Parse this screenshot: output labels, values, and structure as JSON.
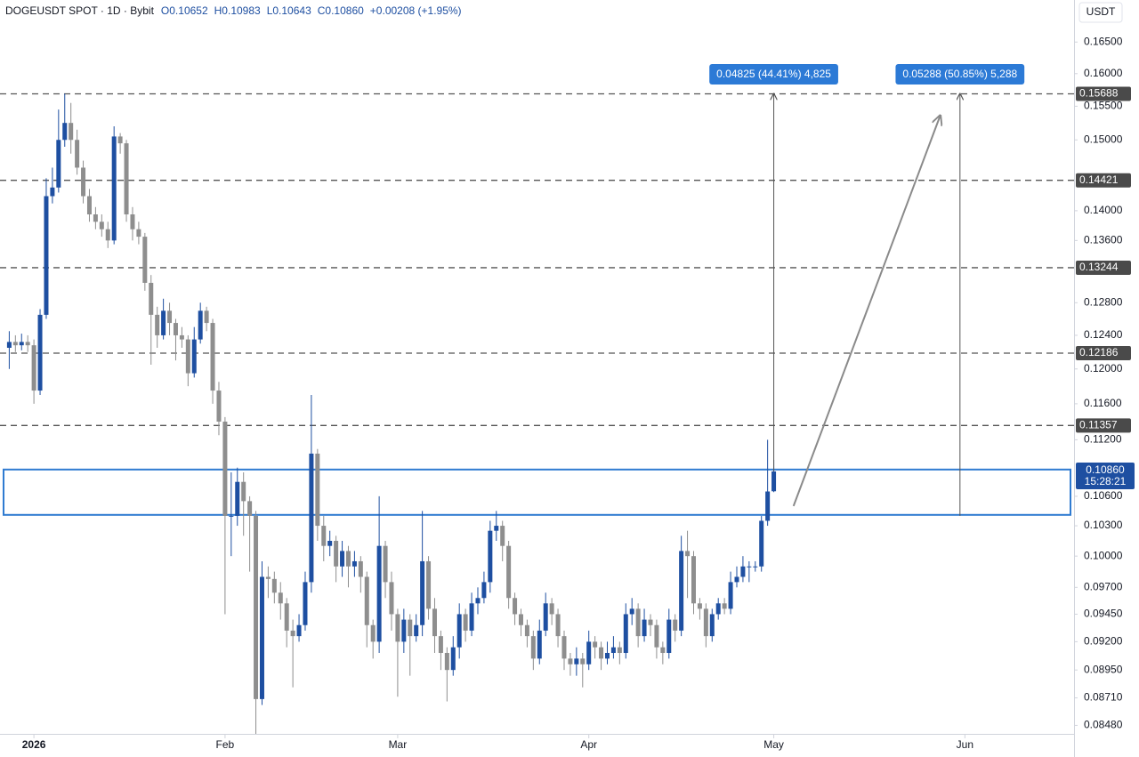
{
  "chart_data": {
    "type": "candlestick",
    "symbol": "DOGEUSDT SPOT · 1D · Bybit",
    "ohlc_labels": [
      "O0.10652",
      "H0.10983",
      "L0.10643",
      "C0.10860"
    ],
    "change": "+0.00208 (+1.95%)",
    "currency": "USDT",
    "log_scale": true,
    "grid": false,
    "up_color": "#1e4fa1",
    "down_color": "#8e8e8e",
    "open": [
      0.1225,
      0.1232,
      0.1228,
      0.1232,
      0.1228,
      0.1175,
      0.1265,
      0.142,
      0.1432,
      0.15,
      0.1525,
      0.15,
      0.146,
      0.142,
      0.1395,
      0.1385,
      0.1375,
      0.136,
      0.1505,
      0.1495,
      0.1395,
      0.1375,
      0.1365,
      0.1305,
      0.1265,
      0.124,
      0.127,
      0.1255,
      0.124,
      0.1235,
      0.1195,
      0.1235,
      0.127,
      0.1255,
      0.1175,
      0.114,
      0.104,
      0.104,
      0.1075,
      0.1055,
      0.104,
      0.087,
      0.098,
      0.0978,
      0.0965,
      0.0955,
      0.093,
      0.0925,
      0.0935,
      0.0975,
      0.1105,
      0.103,
      0.101,
      0.1015,
      0.099,
      0.1005,
      0.099,
      0.0995,
      0.098,
      0.0935,
      0.092,
      0.101,
      0.0975,
      0.0945,
      0.092,
      0.094,
      0.0925,
      0.0935,
      0.0995,
      0.095,
      0.0925,
      0.091,
      0.0895,
      0.0915,
      0.0945,
      0.093,
      0.0955,
      0.096,
      0.0975,
      0.1025,
      0.103,
      0.101,
      0.096,
      0.0945,
      0.0935,
      0.0925,
      0.0905,
      0.093,
      0.0955,
      0.0945,
      0.0925,
      0.0905,
      0.09,
      0.0905,
      0.09,
      0.092,
      0.0915,
      0.0905,
      0.091,
      0.0915,
      0.091,
      0.0945,
      0.095,
      0.0925,
      0.094,
      0.0935,
      0.0915,
      0.091,
      0.094,
      0.093,
      0.1005,
      0.1,
      0.0955,
      0.095,
      0.0925,
      0.0945,
      0.0955,
      0.095,
      0.0975,
      0.098,
      0.099,
      0.099,
      0.099,
      0.1035,
      0.10652
    ],
    "high": [
      0.1245,
      0.124,
      0.1242,
      0.124,
      0.1235,
      0.1272,
      0.1445,
      0.146,
      0.1545,
      0.1569,
      0.1555,
      0.1515,
      0.147,
      0.143,
      0.1405,
      0.1395,
      0.1385,
      0.152,
      0.151,
      0.15,
      0.1405,
      0.1385,
      0.137,
      0.1315,
      0.1275,
      0.1285,
      0.128,
      0.126,
      0.125,
      0.124,
      0.125,
      0.128,
      0.1275,
      0.126,
      0.1185,
      0.1145,
      0.1085,
      0.109,
      0.1085,
      0.106,
      0.1045,
      0.0995,
      0.099,
      0.0985,
      0.0975,
      0.096,
      0.094,
      0.0945,
      0.0985,
      0.117,
      0.111,
      0.104,
      0.1025,
      0.102,
      0.1015,
      0.101,
      0.1005,
      0.1,
      0.0985,
      0.094,
      0.106,
      0.1015,
      0.0985,
      0.095,
      0.095,
      0.0945,
      0.0945,
      0.1045,
      0.1,
      0.096,
      0.093,
      0.0915,
      0.0925,
      0.0955,
      0.095,
      0.0965,
      0.097,
      0.0985,
      0.1035,
      0.1045,
      0.1035,
      0.1015,
      0.0965,
      0.095,
      0.094,
      0.093,
      0.094,
      0.0965,
      0.096,
      0.095,
      0.093,
      0.091,
      0.0915,
      0.091,
      0.093,
      0.0925,
      0.092,
      0.092,
      0.0925,
      0.092,
      0.0955,
      0.096,
      0.0955,
      0.095,
      0.0945,
      0.094,
      0.092,
      0.095,
      0.0945,
      0.102,
      0.1025,
      0.1005,
      0.096,
      0.0955,
      0.095,
      0.096,
      0.096,
      0.0985,
      0.099,
      0.1,
      0.0995,
      0.0995,
      0.104,
      0.112,
      0.10983
    ],
    "low": [
      0.12,
      0.122,
      0.1222,
      0.122,
      0.116,
      0.117,
      0.126,
      0.141,
      0.1425,
      0.149,
      0.148,
      0.145,
      0.141,
      0.1385,
      0.1375,
      0.1365,
      0.135,
      0.1355,
      0.148,
      0.1385,
      0.136,
      0.1355,
      0.1295,
      0.1205,
      0.1225,
      0.1235,
      0.124,
      0.121,
      0.1225,
      0.118,
      0.119,
      0.123,
      0.1245,
      0.116,
      0.1125,
      0.0945,
      0.1,
      0.103,
      0.102,
      0.0985,
      0.0841,
      0.0865,
      0.096,
      0.0955,
      0.094,
      0.0915,
      0.088,
      0.092,
      0.093,
      0.0965,
      0.1015,
      0.0995,
      0.1,
      0.0975,
      0.098,
      0.097,
      0.098,
      0.0965,
      0.0915,
      0.0905,
      0.091,
      0.096,
      0.093,
      0.0872,
      0.091,
      0.089,
      0.092,
      0.0925,
      0.094,
      0.091,
      0.0895,
      0.0868,
      0.089,
      0.0905,
      0.092,
      0.0925,
      0.0945,
      0.0955,
      0.0965,
      0.1015,
      0.0995,
      0.095,
      0.0935,
      0.0925,
      0.0915,
      0.0895,
      0.09,
      0.0925,
      0.0935,
      0.0915,
      0.0895,
      0.089,
      0.089,
      0.088,
      0.0895,
      0.0905,
      0.0895,
      0.09,
      0.0905,
      0.09,
      0.0905,
      0.0935,
      0.0915,
      0.092,
      0.0925,
      0.0905,
      0.09,
      0.0905,
      0.092,
      0.0925,
      0.096,
      0.0945,
      0.094,
      0.0915,
      0.092,
      0.094,
      0.0945,
      0.0945,
      0.097,
      0.0975,
      0.0975,
      0.0985,
      0.0985,
      0.103,
      0.10643
    ],
    "close": [
      0.1232,
      0.1228,
      0.1232,
      0.1228,
      0.1175,
      0.1265,
      0.142,
      0.1432,
      0.15,
      0.1525,
      0.15,
      0.146,
      0.142,
      0.1395,
      0.1385,
      0.1375,
      0.136,
      0.1505,
      0.1495,
      0.1395,
      0.1375,
      0.1365,
      0.1305,
      0.1265,
      0.124,
      0.127,
      0.1255,
      0.124,
      0.1235,
      0.1195,
      0.1235,
      0.127,
      0.1255,
      0.1175,
      0.114,
      0.104,
      0.104,
      0.1075,
      0.1055,
      0.104,
      0.087,
      0.098,
      0.0978,
      0.0965,
      0.0955,
      0.093,
      0.0925,
      0.0935,
      0.0975,
      0.1105,
      0.103,
      0.101,
      0.1015,
      0.099,
      0.1005,
      0.099,
      0.0995,
      0.098,
      0.0935,
      0.092,
      0.101,
      0.0975,
      0.0945,
      0.092,
      0.094,
      0.0925,
      0.0935,
      0.0995,
      0.095,
      0.0925,
      0.091,
      0.0895,
      0.0915,
      0.0945,
      0.093,
      0.0955,
      0.096,
      0.0975,
      0.1025,
      0.103,
      0.101,
      0.096,
      0.0945,
      0.0935,
      0.0925,
      0.0905,
      0.093,
      0.0955,
      0.0945,
      0.0925,
      0.0905,
      0.09,
      0.0905,
      0.09,
      0.092,
      0.0915,
      0.0905,
      0.091,
      0.0915,
      0.091,
      0.0945,
      0.095,
      0.0925,
      0.094,
      0.0935,
      0.0915,
      0.091,
      0.094,
      0.093,
      0.1005,
      0.1,
      0.0955,
      0.095,
      0.0925,
      0.0945,
      0.0955,
      0.095,
      0.0975,
      0.098,
      0.099,
      0.099,
      0.099,
      0.1035,
      0.1065,
      0.1086
    ],
    "xlim": [
      -1.5,
      172.7
    ],
    "xticks": [
      {
        "value": 4,
        "label": "2026"
      },
      {
        "value": 35,
        "label": "Feb"
      },
      {
        "value": 63,
        "label": "Mar"
      },
      {
        "value": 94,
        "label": "Apr"
      },
      {
        "value": 124,
        "label": "May"
      },
      {
        "value": 155,
        "label": "Jun"
      }
    ],
    "ylim": [
      0.0841,
      0.1719
    ],
    "yticks": [
      {
        "value": 0.165,
        "label": "0.16500"
      },
      {
        "value": 0.16,
        "label": "0.16000"
      },
      {
        "value": 0.155,
        "label": "0.15500"
      },
      {
        "value": 0.15,
        "label": "0.15000"
      },
      {
        "value": 0.14,
        "label": "0.14000"
      },
      {
        "value": 0.136,
        "label": "0.13600"
      },
      {
        "value": 0.128,
        "label": "0.12800"
      },
      {
        "value": 0.124,
        "label": "0.12400"
      },
      {
        "value": 0.12,
        "label": "0.12000"
      },
      {
        "value": 0.116,
        "label": "0.11600"
      },
      {
        "value": 0.112,
        "label": "0.11200"
      },
      {
        "value": 0.106,
        "label": "0.10600"
      },
      {
        "value": 0.103,
        "label": "0.10300"
      },
      {
        "value": 0.1,
        "label": "0.10000"
      },
      {
        "value": 0.097,
        "label": "0.09700"
      },
      {
        "value": 0.0945,
        "label": "0.09450"
      },
      {
        "value": 0.092,
        "label": "0.09200"
      },
      {
        "value": 0.0895,
        "label": "0.08950"
      },
      {
        "value": 0.0871,
        "label": "0.08710"
      },
      {
        "value": 0.0848,
        "label": "0.08480"
      }
    ],
    "levels": [
      0.15688,
      0.14421,
      0.13244,
      0.12186,
      0.11357
    ],
    "last_price": {
      "value": 0.1086,
      "label": "0.10860"
    },
    "countdown": "15:28:21",
    "zone": {
      "top": 0.1088,
      "bottom": 0.1041,
      "color": "#2f7bd1"
    },
    "measures": [
      {
        "x": 124,
        "from": 0.10863,
        "to": 0.15688,
        "label": "0.04825 (44.41%) 4,825"
      },
      {
        "x": 154.2,
        "from": 0.104,
        "to": 0.15688,
        "label": "0.05288 (50.85%) 5,288"
      }
    ],
    "arrow": {
      "x": [
        127.2,
        151
      ],
      "y": [
        0.105,
        0.1536
      ]
    }
  }
}
